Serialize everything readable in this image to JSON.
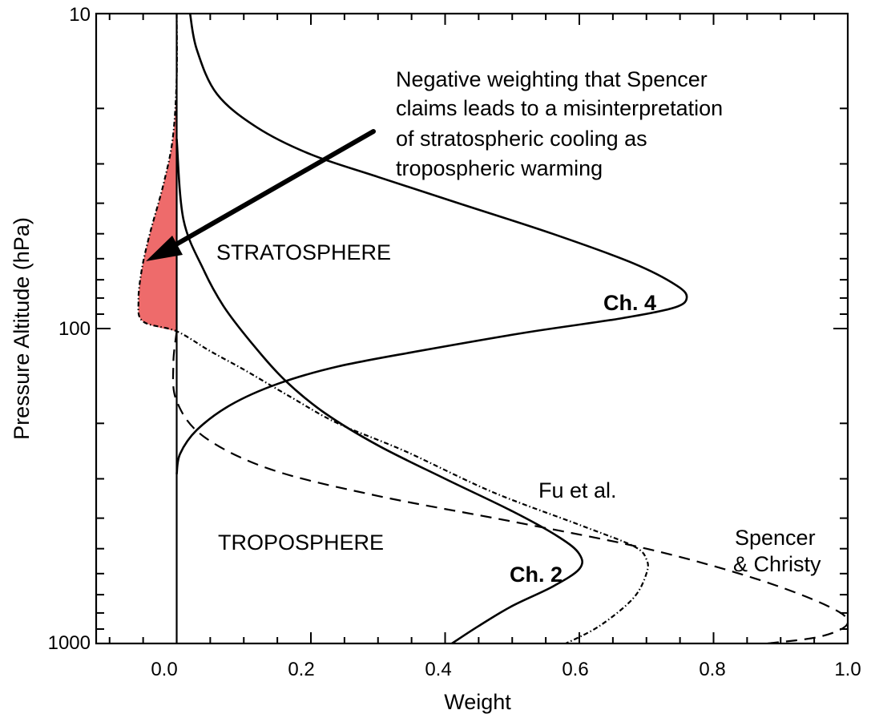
{
  "chart_data": {
    "type": "line",
    "title": "",
    "xlabel": "Weight",
    "ylabel": "Pressure Altitude  (hPa)",
    "xlim": [
      -0.12,
      1.0
    ],
    "ylim": [
      1000,
      10
    ],
    "y_scale": "log",
    "y_reversed": true,
    "x_ticks": [
      0.0,
      0.2,
      0.4,
      0.6,
      0.8,
      1.0
    ],
    "x_tick_labels": [
      "0.0",
      "0.2",
      "0.4",
      "0.6",
      "0.8",
      "1.0"
    ],
    "y_ticks": [
      10,
      100,
      1000
    ],
    "y_tick_labels": [
      "10",
      "100",
      "1000"
    ],
    "grid": false,
    "legend": "none",
    "highlight_color": "#ee6b6b",
    "series": [
      {
        "name": "Ch. 4",
        "style": "solid",
        "points": [
          [
            0.02,
            10
          ],
          [
            0.03,
            13
          ],
          [
            0.06,
            18
          ],
          [
            0.12,
            23
          ],
          [
            0.2,
            28
          ],
          [
            0.3,
            33
          ],
          [
            0.42,
            40
          ],
          [
            0.56,
            50
          ],
          [
            0.68,
            62
          ],
          [
            0.745,
            73
          ],
          [
            0.76,
            80
          ],
          [
            0.74,
            86
          ],
          [
            0.66,
            93
          ],
          [
            0.52,
            103
          ],
          [
            0.36,
            118
          ],
          [
            0.24,
            132
          ],
          [
            0.15,
            150
          ],
          [
            0.08,
            175
          ],
          [
            0.03,
            210
          ],
          [
            0.005,
            250
          ],
          [
            0.0,
            290
          ]
        ]
      },
      {
        "name": "Ch. 2",
        "style": "solid",
        "points": [
          [
            0.0,
            25
          ],
          [
            0.01,
            45
          ],
          [
            0.04,
            65
          ],
          [
            0.07,
            85
          ],
          [
            0.11,
            110
          ],
          [
            0.16,
            145
          ],
          [
            0.22,
            185
          ],
          [
            0.3,
            235
          ],
          [
            0.4,
            300
          ],
          [
            0.5,
            380
          ],
          [
            0.57,
            460
          ],
          [
            0.6,
            520
          ],
          [
            0.6,
            580
          ],
          [
            0.56,
            660
          ],
          [
            0.5,
            760
          ],
          [
            0.45,
            880
          ],
          [
            0.41,
            1000
          ]
        ]
      },
      {
        "name": "Fu et al.",
        "style": "dashdot",
        "points": [
          [
            0.0,
            10
          ],
          [
            0.0,
            16
          ],
          [
            -0.006,
            25
          ],
          [
            -0.02,
            35
          ],
          [
            -0.04,
            50
          ],
          [
            -0.052,
            65
          ],
          [
            -0.057,
            82
          ],
          [
            -0.05,
            95
          ],
          [
            0.0,
            102
          ],
          [
            0.05,
            118
          ],
          [
            0.1,
            135
          ],
          [
            0.17,
            165
          ],
          [
            0.24,
            200
          ],
          [
            0.34,
            245
          ],
          [
            0.47,
            330
          ],
          [
            0.6,
            420
          ],
          [
            0.68,
            490
          ],
          [
            0.7,
            540
          ],
          [
            0.7,
            600
          ],
          [
            0.68,
            720
          ],
          [
            0.63,
            880
          ],
          [
            0.58,
            1000
          ]
        ]
      },
      {
        "name": "Spencer & Christy",
        "style": "dashed",
        "points": [
          [
            0.0,
            102
          ],
          [
            -0.005,
            130
          ],
          [
            0.0,
            170
          ],
          [
            0.04,
            220
          ],
          [
            0.14,
            280
          ],
          [
            0.3,
            340
          ],
          [
            0.5,
            410
          ],
          [
            0.7,
            500
          ],
          [
            0.86,
            620
          ],
          [
            0.97,
            760
          ],
          [
            1.0,
            860
          ],
          [
            0.96,
            950
          ],
          [
            0.88,
            1000
          ]
        ]
      }
    ],
    "annotations": [
      {
        "text": [
          "Negative weighting that Spencer",
          "claims leads to a misinterpretation",
          "of stratospheric cooling as",
          "tropospheric warming"
        ]
      },
      {
        "text": "STRATOSPHERE"
      },
      {
        "text": "TROPOSPHERE"
      },
      {
        "text": "Ch. 4"
      },
      {
        "text": "Ch. 2"
      },
      {
        "text": "Fu et al."
      },
      {
        "text": [
          "Spencer",
          "& Christy"
        ]
      }
    ]
  }
}
